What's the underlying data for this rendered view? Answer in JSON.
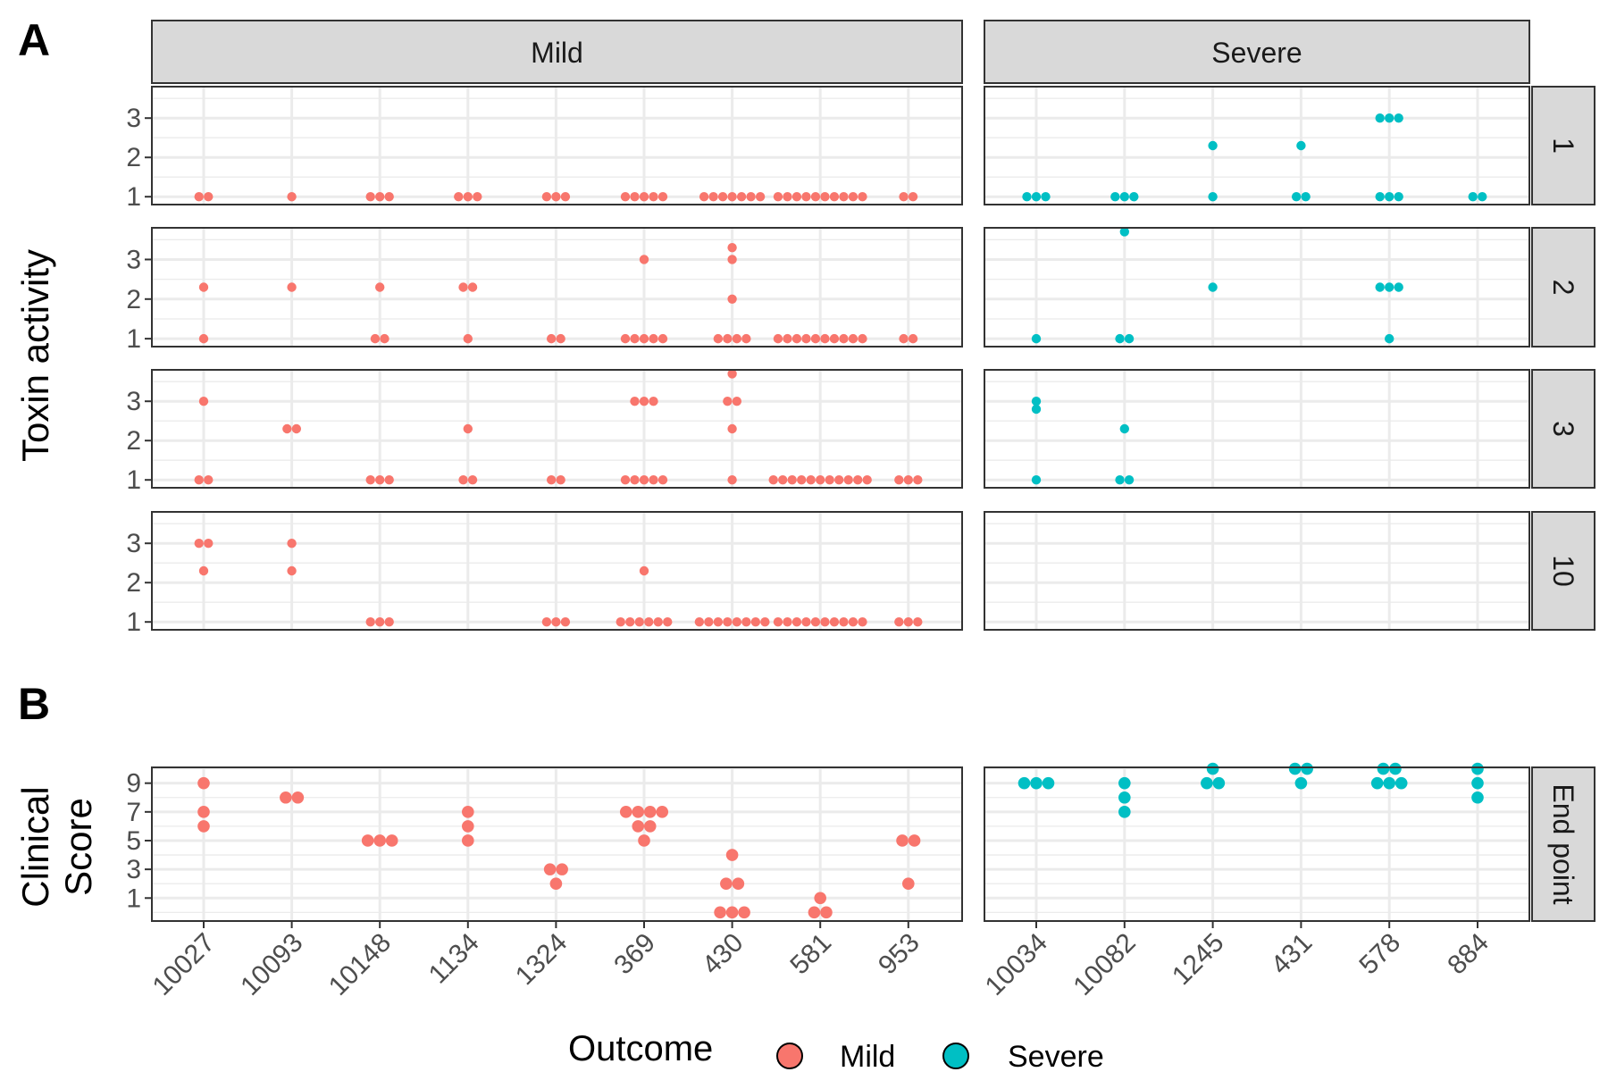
{
  "figure": {
    "panel_a_tag": "A",
    "panel_b_tag": "B"
  },
  "colors": {
    "mild": "#F8766D",
    "severe": "#00BFC4",
    "strip_fill": "#D9D9D9",
    "grid": "#EBEBEB",
    "panel_border": "#333333"
  },
  "chart_data": [
    {
      "type": "scatter",
      "subtype": "dot-plot faceted grid",
      "ylabel": "Toxin activity",
      "column_strips": [
        "Mild",
        "Severe"
      ],
      "row_strips": [
        "1",
        "2",
        "3",
        "10"
      ],
      "y_ticks": [
        "1",
        "2",
        "3"
      ],
      "ylim": [
        0.8,
        3.8
      ],
      "x_categories": {
        "Mild": [
          "10027",
          "10093",
          "10148",
          "1134",
          "1324",
          "369",
          "430",
          "581",
          "953"
        ],
        "Severe": [
          "10034",
          "10082",
          "1245",
          "431",
          "578",
          "884"
        ]
      },
      "grid": true,
      "facets": [
        {
          "row": "1",
          "col": "Mild",
          "series": "Mild",
          "points": [
            [
              "10027",
              1,
              2
            ],
            [
              "10093",
              1,
              1
            ],
            [
              "10148",
              1,
              3
            ],
            [
              "1134",
              1,
              3
            ],
            [
              "1324",
              1,
              3
            ],
            [
              "369",
              1,
              5
            ],
            [
              "430",
              1,
              7
            ],
            [
              "581",
              1,
              10
            ],
            [
              "953",
              1,
              2
            ]
          ]
        },
        {
          "row": "1",
          "col": "Severe",
          "series": "Severe",
          "points": [
            [
              "10034",
              1,
              3
            ],
            [
              "10082",
              1,
              3
            ],
            [
              "1245",
              1,
              1
            ],
            [
              "1245",
              2.3,
              1
            ],
            [
              "431",
              1,
              2
            ],
            [
              "431",
              2.3,
              1
            ],
            [
              "578",
              1,
              3
            ],
            [
              "578",
              3,
              3
            ],
            [
              "884",
              1,
              2
            ]
          ]
        },
        {
          "row": "2",
          "col": "Mild",
          "series": "Mild",
          "points": [
            [
              "10027",
              1,
              1
            ],
            [
              "10027",
              2.3,
              1
            ],
            [
              "10093",
              2.3,
              1
            ],
            [
              "10148",
              1,
              2
            ],
            [
              "10148",
              2.3,
              1
            ],
            [
              "1134",
              1,
              1
            ],
            [
              "1134",
              2.3,
              2
            ],
            [
              "1324",
              1,
              2
            ],
            [
              "369",
              1,
              5
            ],
            [
              "369",
              3,
              1
            ],
            [
              "430",
              1,
              4
            ],
            [
              "430",
              2,
              1
            ],
            [
              "430",
              3,
              1
            ],
            [
              "430",
              3.3,
              1
            ],
            [
              "581",
              1,
              10
            ],
            [
              "953",
              1,
              2
            ]
          ]
        },
        {
          "row": "2",
          "col": "Severe",
          "series": "Severe",
          "points": [
            [
              "10034",
              1,
              1
            ],
            [
              "10082",
              1,
              2
            ],
            [
              "10082",
              3.7,
              1
            ],
            [
              "1245",
              2.3,
              1
            ],
            [
              "578",
              1,
              1
            ],
            [
              "578",
              2.3,
              3
            ]
          ]
        },
        {
          "row": "3",
          "col": "Mild",
          "series": "Mild",
          "points": [
            [
              "10027",
              1,
              2
            ],
            [
              "10027",
              3,
              1
            ],
            [
              "10093",
              2.3,
              2
            ],
            [
              "10148",
              1,
              3
            ],
            [
              "1134",
              1,
              2
            ],
            [
              "1134",
              2.3,
              1
            ],
            [
              "1324",
              1,
              2
            ],
            [
              "369",
              1,
              5
            ],
            [
              "369",
              3,
              3
            ],
            [
              "430",
              1,
              1
            ],
            [
              "430",
              2.3,
              1
            ],
            [
              "430",
              3,
              2
            ],
            [
              "430",
              3.7,
              1
            ],
            [
              "581",
              1,
              11
            ],
            [
              "953",
              1,
              3
            ]
          ]
        },
        {
          "row": "3",
          "col": "Severe",
          "series": "Severe",
          "points": [
            [
              "10034",
              1,
              1
            ],
            [
              "10034",
              2.8,
              1
            ],
            [
              "10034",
              3,
              1
            ],
            [
              "10082",
              1,
              2
            ],
            [
              "10082",
              2.3,
              1
            ]
          ]
        },
        {
          "row": "10",
          "col": "Mild",
          "series": "Mild",
          "points": [
            [
              "10027",
              2.3,
              1
            ],
            [
              "10027",
              3,
              2
            ],
            [
              "10093",
              2.3,
              1
            ],
            [
              "10093",
              3,
              1
            ],
            [
              "10148",
              1,
              3
            ],
            [
              "1324",
              1,
              3
            ],
            [
              "369",
              1,
              6
            ],
            [
              "369",
              2.3,
              1
            ],
            [
              "430",
              1,
              8
            ],
            [
              "581",
              1,
              10
            ],
            [
              "953",
              1,
              3
            ]
          ]
        },
        {
          "row": "10",
          "col": "Severe",
          "series": "Severe",
          "points": []
        }
      ]
    },
    {
      "type": "scatter",
      "subtype": "dot-plot faceted",
      "ylabel_lines": [
        "Clinical",
        "Score"
      ],
      "row_strip": "End point",
      "y_ticks": [
        "1",
        "3",
        "5",
        "7",
        "9"
      ],
      "ylim": [
        -0.6,
        10.1
      ],
      "grid": true,
      "facets": [
        {
          "col": "Mild",
          "series": "Mild",
          "points": [
            [
              "10027",
              6,
              1
            ],
            [
              "10027",
              7,
              1
            ],
            [
              "10027",
              9,
              1
            ],
            [
              "10093",
              8,
              2
            ],
            [
              "10148",
              5,
              3
            ],
            [
              "1134",
              5,
              1
            ],
            [
              "1134",
              6,
              1
            ],
            [
              "1134",
              7,
              1
            ],
            [
              "1324",
              2,
              1
            ],
            [
              "1324",
              3,
              2
            ],
            [
              "369",
              5,
              1
            ],
            [
              "369",
              6,
              2
            ],
            [
              "369",
              7,
              4
            ],
            [
              "430",
              0,
              3
            ],
            [
              "430",
              2,
              2
            ],
            [
              "430",
              4,
              1
            ],
            [
              "581",
              0,
              2
            ],
            [
              "581",
              1,
              1
            ],
            [
              "953",
              2,
              1
            ],
            [
              "953",
              5,
              2
            ]
          ]
        },
        {
          "col": "Severe",
          "series": "Severe",
          "points": [
            [
              "10034",
              9,
              3
            ],
            [
              "10082",
              7,
              1
            ],
            [
              "10082",
              8,
              1
            ],
            [
              "10082",
              9,
              1
            ],
            [
              "1245",
              9,
              2
            ],
            [
              "1245",
              10,
              1
            ],
            [
              "431",
              9,
              1
            ],
            [
              "431",
              10,
              2
            ],
            [
              "578",
              9,
              3
            ],
            [
              "578",
              10,
              2
            ],
            [
              "884",
              8,
              1
            ],
            [
              "884",
              9,
              1
            ],
            [
              "884",
              10,
              1
            ]
          ]
        }
      ]
    }
  ],
  "legend": {
    "title": "Outcome",
    "entries": [
      {
        "label": "Mild",
        "series": "Mild"
      },
      {
        "label": "Severe",
        "series": "Severe"
      }
    ]
  }
}
